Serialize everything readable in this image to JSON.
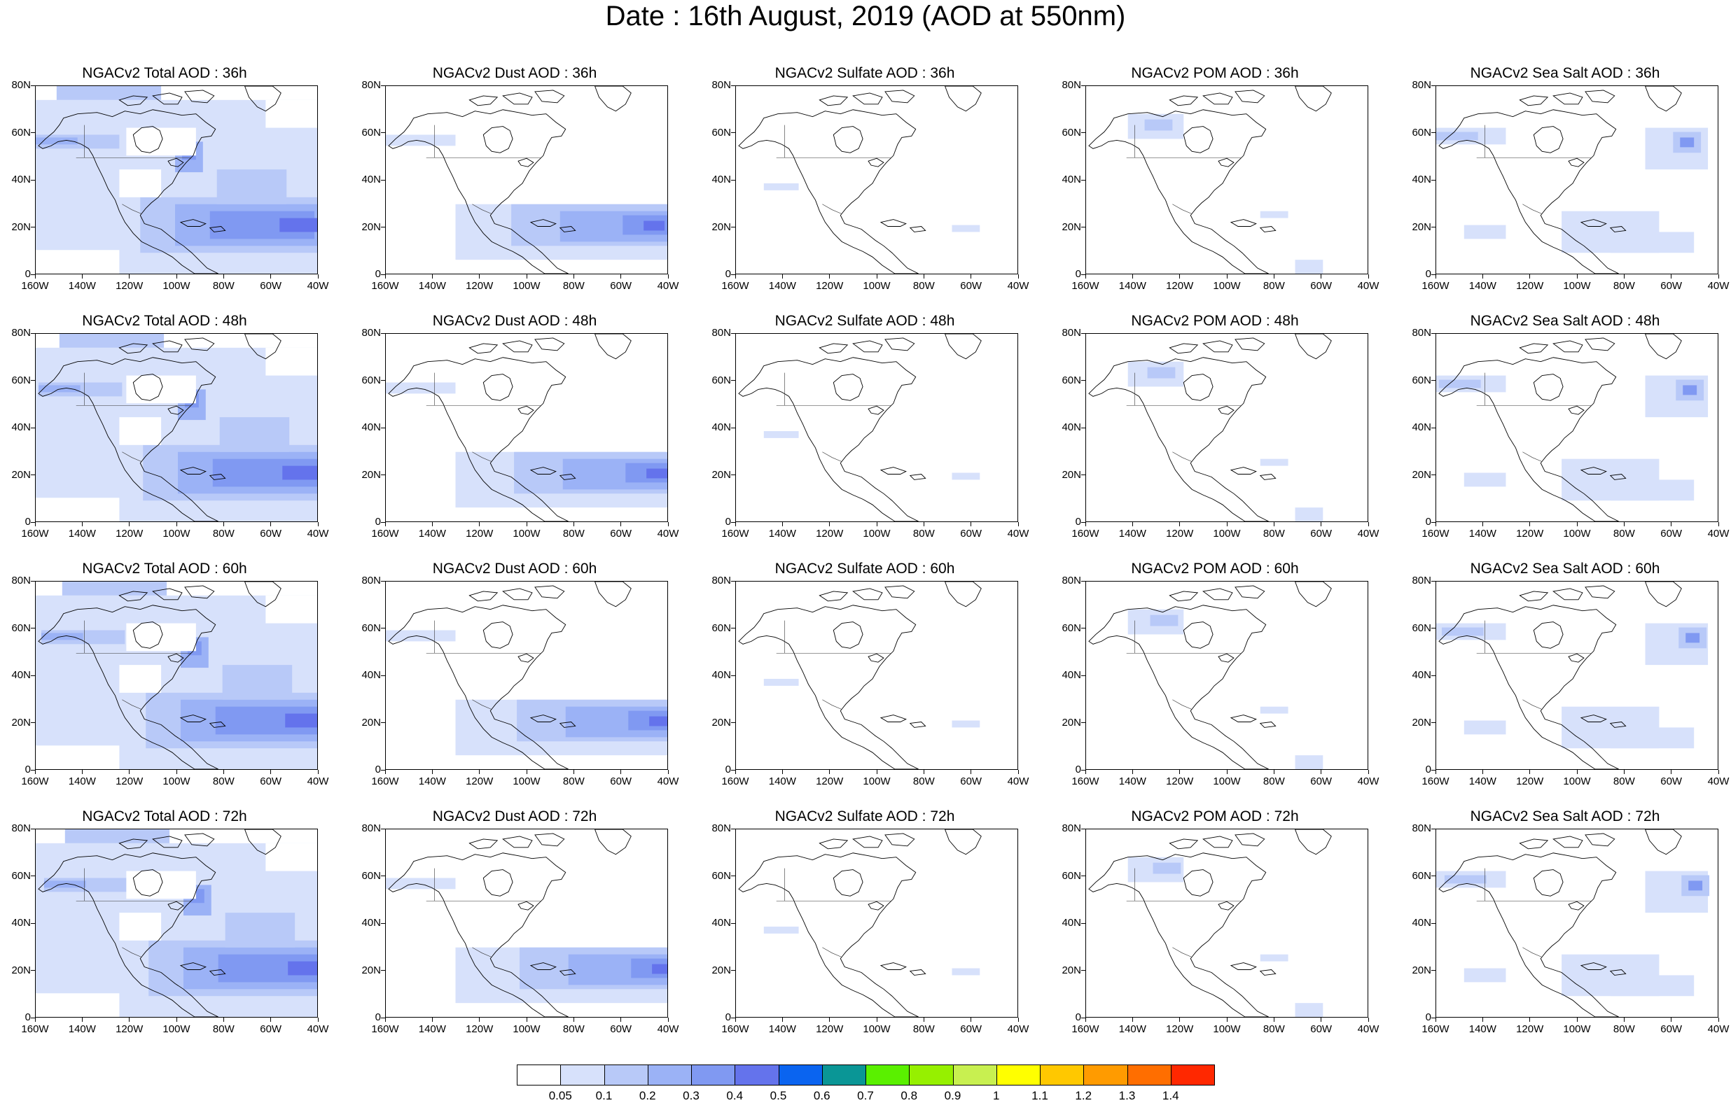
{
  "title": "Date : 16th August, 2019 (AOD at 550nm)",
  "y_ticks": [
    "80N",
    "60N",
    "40N",
    "20N",
    "0"
  ],
  "x_ticks": [
    "160W",
    "140W",
    "120W",
    "100W",
    "80W",
    "60W",
    "40W"
  ],
  "panels": [
    {
      "title": "NGACv2 Total AOD : 36h",
      "species": "total",
      "lead": "36h"
    },
    {
      "title": "NGACv2 Dust AOD : 36h",
      "species": "dust",
      "lead": "36h"
    },
    {
      "title": "NGACv2 Sulfate AOD : 36h",
      "species": "sulfate",
      "lead": "36h"
    },
    {
      "title": "NGACv2 POM AOD : 36h",
      "species": "pom",
      "lead": "36h"
    },
    {
      "title": "NGACv2 Sea Salt AOD : 36h",
      "species": "seasalt",
      "lead": "36h"
    },
    {
      "title": "NGACv2 Total AOD : 48h",
      "species": "total",
      "lead": "48h"
    },
    {
      "title": "NGACv2 Dust AOD : 48h",
      "species": "dust",
      "lead": "48h"
    },
    {
      "title": "NGACv2 Sulfate AOD : 48h",
      "species": "sulfate",
      "lead": "48h"
    },
    {
      "title": "NGACv2 POM AOD : 48h",
      "species": "pom",
      "lead": "48h"
    },
    {
      "title": "NGACv2 Sea Salt AOD : 48h",
      "species": "seasalt",
      "lead": "48h"
    },
    {
      "title": "NGACv2 Total AOD : 60h",
      "species": "total",
      "lead": "60h"
    },
    {
      "title": "NGACv2 Dust AOD : 60h",
      "species": "dust",
      "lead": "60h"
    },
    {
      "title": "NGACv2 Sulfate AOD : 60h",
      "species": "sulfate",
      "lead": "60h"
    },
    {
      "title": "NGACv2 POM AOD : 60h",
      "species": "pom",
      "lead": "60h"
    },
    {
      "title": "NGACv2 Sea Salt AOD : 60h",
      "species": "seasalt",
      "lead": "60h"
    },
    {
      "title": "NGACv2 Total AOD : 72h",
      "species": "total",
      "lead": "72h"
    },
    {
      "title": "NGACv2 Dust AOD : 72h",
      "species": "dust",
      "lead": "72h"
    },
    {
      "title": "NGACv2 Sulfate AOD : 72h",
      "species": "sulfate",
      "lead": "72h"
    },
    {
      "title": "NGACv2 POM AOD : 72h",
      "species": "pom",
      "lead": "72h"
    },
    {
      "title": "NGACv2 Sea Salt  AOD : 72h",
      "species": "seasalt",
      "lead": "72h"
    }
  ],
  "colorbar": {
    "labels": [
      "0.05",
      "0.1",
      "0.2",
      "0.3",
      "0.4",
      "0.5",
      "0.6",
      "0.7",
      "0.8",
      "0.9",
      "1",
      "1.1",
      "1.2",
      "1.3",
      "1.4"
    ],
    "colors": [
      "#ffffff",
      "#d7e1fb",
      "#b8c9f8",
      "#9bb2f6",
      "#8099f2",
      "#6473ec",
      "#0a64f0",
      "#0a9696",
      "#5af000",
      "#96f000",
      "#c8f050",
      "#ffff00",
      "#ffc800",
      "#ff9b00",
      "#ff6e00",
      "#ff2800"
    ]
  }
}
